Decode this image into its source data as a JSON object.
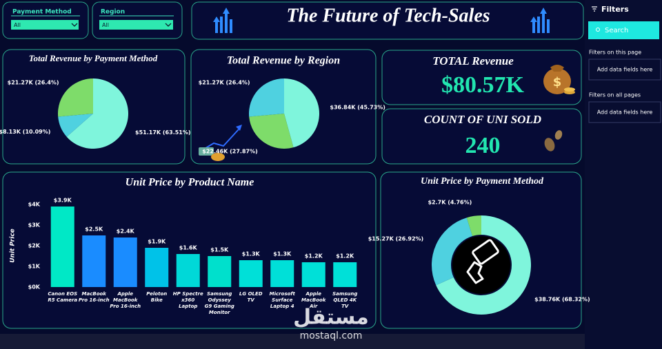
{
  "header": {
    "title": "The Future of Tech-Sales"
  },
  "slicers": [
    {
      "label": "Payment Method",
      "value": "All"
    },
    {
      "label": "Region",
      "value": "All"
    }
  ],
  "cards": [
    {
      "title": "TOTAL Revenue",
      "value": "$80.57K"
    },
    {
      "title": "COUNT OF UNI SOLD",
      "value": "240"
    }
  ],
  "chart_data": [
    {
      "type": "pie",
      "title": "Total Revenue by Payment Method",
      "values": [
        51170,
        8130,
        21270
      ],
      "value_labels": [
        "$51.17K (63.51%)",
        "$8.13K (10.09%)",
        "$21.27K (26.4%)"
      ],
      "colors": [
        "#7ff5dc",
        "#4fd1e0",
        "#7edc6a"
      ]
    },
    {
      "type": "pie",
      "title": "Total Revenue by Region",
      "values": [
        36840,
        22460,
        21270
      ],
      "value_labels": [
        "$36.84K (45.73%)",
        "$22.46K (27.87%)",
        "$21.27K (26.4%)"
      ],
      "colors": [
        "#7ff5dc",
        "#7edc6a",
        "#4fd1e0"
      ]
    },
    {
      "type": "bar",
      "title": "Unit Price by Product Name",
      "y_label": "Unit Price",
      "categories": [
        "Canon EOS R5 Camera",
        "MacBook Pro 16-inch",
        "Apple MacBook Pro 16-inch",
        "Peloton Bike",
        "HP Spectre x360 Laptop",
        "Samsung Odyssey G9 Gaming Monitor",
        "LG OLED TV",
        "Microsoft Surface Laptop 4",
        "Apple MacBook Air",
        "Samsung QLED 4K TV"
      ],
      "values": [
        3900,
        2500,
        2400,
        1900,
        1600,
        1500,
        1300,
        1300,
        1200,
        1200
      ],
      "value_labels": [
        "$3.9K",
        "$2.5K",
        "$2.4K",
        "$1.9K",
        "$1.6K",
        "$1.5K",
        "$1.3K",
        "$1.3K",
        "$1.2K",
        "$1.2K"
      ],
      "colors": [
        "#00e8c6",
        "#1a8cff",
        "#1a8cff",
        "#00c2e8",
        "#00d8d8",
        "#00e0cc",
        "#00e0d8",
        "#00e0d8",
        "#00e0d8",
        "#00e0d8"
      ],
      "ylim": [
        0,
        4000
      ],
      "yticks": [
        {
          "value": 0,
          "label": "$0K"
        },
        {
          "value": 1000,
          "label": "$1K"
        },
        {
          "value": 2000,
          "label": "$2K"
        },
        {
          "value": 3000,
          "label": "$3K"
        },
        {
          "value": 4000,
          "label": "$4K"
        }
      ]
    },
    {
      "type": "donut",
      "title": "Unit Price by Payment Method",
      "values": [
        38760,
        15270,
        2700
      ],
      "value_labels": [
        "$38.76K (68.32%)",
        "$15.27K (26.92%)",
        "$2.7K (4.76%)"
      ],
      "colors": [
        "#7ff5dc",
        "#4fd1e0",
        "#7edc6a"
      ]
    }
  ],
  "filters_pane": {
    "title": "Filters",
    "search": "Search",
    "sections": [
      {
        "title": "Filters on this page",
        "placeholder": "Add data fields here"
      },
      {
        "title": "Filters on all pages",
        "placeholder": "Add data fields here"
      }
    ]
  },
  "watermark": {
    "arabic": "مستقل",
    "latin": "mostaql.com"
  }
}
